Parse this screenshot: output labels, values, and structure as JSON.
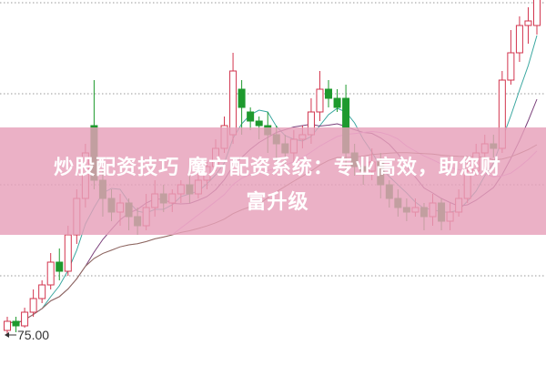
{
  "chart_data": {
    "type": "candlestick",
    "title": "",
    "xlabel": "",
    "ylabel": "",
    "ylim": [
      71.7,
      111.8
    ],
    "grid": true,
    "colors": {
      "up": "#d2344e",
      "down": "#1e9a2e",
      "ma5": "#3aa7a0",
      "ma10": "#7a3f7a",
      "ma20": "#e2a0e6",
      "ma30": "#8a6a5a",
      "grid": "#9a9a9a"
    },
    "low_marker_label": "75.00",
    "candles": [
      [
        75.5,
        76.5,
        77,
        75
      ],
      [
        76.5,
        76,
        77,
        75.3
      ],
      [
        76,
        77.5,
        78,
        75.8
      ],
      [
        77.5,
        79,
        80,
        77
      ],
      [
        79,
        80.5,
        81,
        78.5
      ],
      [
        80.5,
        83,
        84,
        80
      ],
      [
        83,
        82,
        84.5,
        81
      ],
      [
        82,
        86,
        87,
        81.5
      ],
      [
        86,
        90,
        91,
        85
      ],
      [
        90,
        95,
        96,
        89
      ],
      [
        98,
        92,
        103,
        91
      ],
      [
        92,
        90,
        93,
        88
      ],
      [
        90,
        88.5,
        91,
        87.5
      ],
      [
        88.5,
        89.5,
        90.5,
        87
      ],
      [
        89.5,
        88,
        90,
        86.5
      ],
      [
        88,
        87,
        89,
        86
      ],
      [
        87,
        89,
        90.5,
        86.5
      ],
      [
        89,
        90.5,
        92,
        88
      ],
      [
        90.5,
        89.5,
        91.5,
        88.5
      ],
      [
        89.5,
        90.5,
        91,
        88.5
      ],
      [
        90.5,
        91.5,
        92,
        89.5
      ],
      [
        91.5,
        90.5,
        92.5,
        89.5
      ],
      [
        90.5,
        92,
        93,
        90
      ],
      [
        92,
        93.5,
        94,
        91
      ],
      [
        93.5,
        95.5,
        96.5,
        93
      ],
      [
        95.5,
        98,
        99,
        95
      ],
      [
        97,
        104,
        106,
        96
      ],
      [
        102,
        100,
        103,
        97
      ],
      [
        99.5,
        98.5,
        100,
        97.5
      ],
      [
        98.5,
        98,
        99,
        96.5
      ],
      [
        98,
        97,
        99.5,
        95
      ],
      [
        97,
        96,
        98,
        94
      ],
      [
        96,
        95,
        97,
        93.5
      ],
      [
        95,
        96.5,
        97.5,
        94
      ],
      [
        96.5,
        97,
        98,
        95.5
      ],
      [
        97,
        99.5,
        101,
        96
      ],
      [
        99.5,
        102,
        104,
        98.5
      ],
      [
        102,
        101,
        103,
        100
      ],
      [
        101,
        100,
        102,
        99.5
      ],
      [
        101,
        95,
        102.5,
        93
      ],
      [
        95,
        93.5,
        96,
        92.5
      ],
      [
        93.5,
        93,
        94.5,
        91.5
      ],
      [
        93,
        94,
        95.5,
        92
      ],
      [
        94,
        91.5,
        95,
        90
      ],
      [
        91.5,
        90,
        92,
        89
      ],
      [
        90,
        89,
        91,
        88
      ],
      [
        89,
        88.5,
        90,
        87.5
      ],
      [
        88.5,
        89,
        90,
        88
      ],
      [
        89,
        88,
        89.5,
        86.5
      ],
      [
        88,
        89.5,
        90.5,
        87
      ],
      [
        89.5,
        87.5,
        90,
        86.5
      ],
      [
        87.5,
        88.5,
        89.5,
        86.5
      ],
      [
        88.5,
        90,
        91,
        88
      ],
      [
        90,
        93,
        94,
        89.5
      ],
      [
        93,
        95,
        96,
        92.5
      ],
      [
        95,
        96,
        97,
        94
      ],
      [
        96,
        95.5,
        97,
        94.5
      ],
      [
        95.5,
        103,
        104,
        95
      ],
      [
        103,
        106,
        108.5,
        102.5
      ],
      [
        106,
        109,
        110,
        105
      ],
      [
        109,
        109.5,
        111,
        107
      ],
      [
        109,
        112,
        113,
        108
      ]
    ]
  },
  "banner": {
    "line1": "炒股配资技巧 魔方配资系统：专业高效，助您财",
    "line2": "富升级",
    "color": "#e8a0ba"
  }
}
